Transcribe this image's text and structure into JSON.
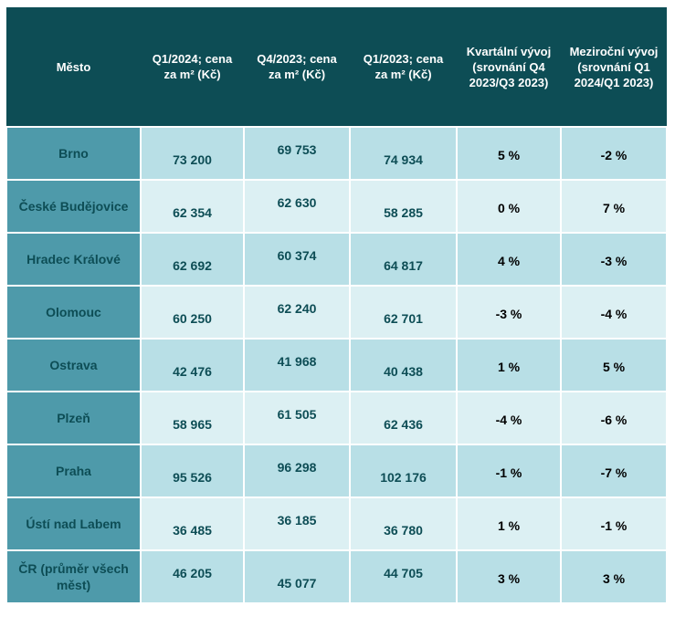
{
  "header": {
    "city": "Město",
    "q1_2024": "Q1/2024; cena za m² (Kč)",
    "q4_2023": "Q4/2023; cena za m² (Kč)",
    "q1_2023": "Q1/2023; cena za m² (Kč)",
    "quarterly": "Kvartální vývoj (srovnání Q4 2023/Q3 2023)",
    "yearly": "Meziroční vývoj (srovnání Q1 2024/Q1 2023)"
  },
  "rows": [
    {
      "city": "Brno",
      "q1_2024": "73 200",
      "q4_2023": "69 753",
      "q1_2023": "74 934",
      "quarterly": "5 %",
      "yearly": "-2 %"
    },
    {
      "city": "České Budějovice",
      "q1_2024": "62 354",
      "q4_2023": "62 630",
      "q1_2023": "58 285",
      "quarterly": "0 %",
      "yearly": "7 %"
    },
    {
      "city": "Hradec Králové",
      "q1_2024": "62 692",
      "q4_2023": "60 374",
      "q1_2023": "64 817",
      "quarterly": "4 %",
      "yearly": "-3 %"
    },
    {
      "city": "Olomouc",
      "q1_2024": "60 250",
      "q4_2023": "62 240",
      "q1_2023": "62 701",
      "quarterly": "-3 %",
      "yearly": "-4 %"
    },
    {
      "city": "Ostrava",
      "q1_2024": "42 476",
      "q4_2023": "41 968",
      "q1_2023": "40 438",
      "quarterly": "1 %",
      "yearly": "5 %"
    },
    {
      "city": "Plzeň",
      "q1_2024": "58 965",
      "q4_2023": "61 505",
      "q1_2023": "62 436",
      "quarterly": "-4 %",
      "yearly": "-6 %"
    },
    {
      "city": "Praha",
      "q1_2024": "95 526",
      "q4_2023": "96 298",
      "q1_2023": "102 176",
      "quarterly": "-1 %",
      "yearly": "-7 %"
    },
    {
      "city": "Ústí nad Labem",
      "q1_2024": "36 485",
      "q4_2023": "36 185",
      "q1_2023": "36 780",
      "quarterly": "1 %",
      "yearly": "-1 %"
    },
    {
      "city": "ČR (průměr všech měst)",
      "q1_2024": "46 205",
      "q4_2023": "45 077",
      "q1_2023": "44 705",
      "quarterly": "3 %",
      "yearly": "3 %"
    }
  ]
}
